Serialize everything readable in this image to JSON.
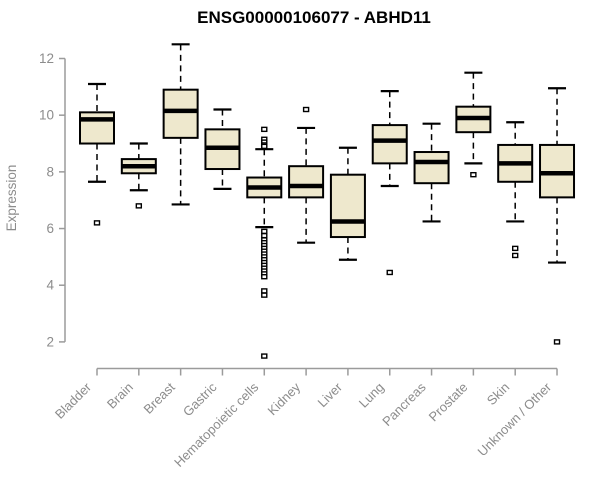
{
  "chart_data": {
    "type": "boxplot",
    "title": "ENSG00000106077 - ABHD11",
    "ylabel": "Expression",
    "xlabel": "",
    "yticks": [
      2,
      4,
      6,
      8,
      10,
      12
    ],
    "ylim": [
      1.3,
      12.7
    ],
    "grid": false,
    "legend": false,
    "categories": [
      "Bladder",
      "Brain",
      "Breast",
      "Gastric",
      "Hematopoietic cells",
      "Kidney",
      "Liver",
      "Lung",
      "Pancreas",
      "Prostate",
      "Skin",
      "Unknown / Other"
    ],
    "series": [
      {
        "category": "Bladder",
        "whisker_low": 7.65,
        "q1": 9.0,
        "median": 9.85,
        "q3": 10.1,
        "whisker_high": 11.1,
        "outliers": [
          6.2
        ]
      },
      {
        "category": "Brain",
        "whisker_low": 7.35,
        "q1": 7.95,
        "median": 8.2,
        "q3": 8.45,
        "whisker_high": 9.0,
        "outliers": [
          6.8
        ]
      },
      {
        "category": "Breast",
        "whisker_low": 6.85,
        "q1": 9.2,
        "median": 10.15,
        "q3": 10.9,
        "whisker_high": 12.5,
        "outliers": []
      },
      {
        "category": "Gastric",
        "whisker_low": 7.4,
        "q1": 8.1,
        "median": 8.85,
        "q3": 9.5,
        "whisker_high": 10.2,
        "outliers": []
      },
      {
        "category": "Hematopoietic cells",
        "whisker_low": 6.05,
        "q1": 7.1,
        "median": 7.45,
        "q3": 7.8,
        "whisker_high": 8.8,
        "outliers": [
          9.5,
          9.15,
          9.05,
          8.95,
          8.9,
          5.9,
          5.75,
          5.6,
          5.5,
          5.4,
          5.3,
          5.2,
          5.1,
          5.0,
          4.9,
          4.8,
          4.7,
          4.6,
          4.5,
          4.4,
          4.3,
          3.8,
          3.65,
          1.5
        ]
      },
      {
        "category": "Kidney",
        "whisker_low": 5.5,
        "q1": 7.1,
        "median": 7.5,
        "q3": 8.2,
        "whisker_high": 9.55,
        "outliers": [
          10.2
        ]
      },
      {
        "category": "Liver",
        "whisker_low": 4.9,
        "q1": 5.7,
        "median": 6.25,
        "q3": 7.9,
        "whisker_high": 8.85,
        "outliers": []
      },
      {
        "category": "Lung",
        "whisker_low": 7.5,
        "q1": 8.3,
        "median": 9.1,
        "q3": 9.65,
        "whisker_high": 10.85,
        "outliers": [
          4.45
        ]
      },
      {
        "category": "Pancreas",
        "whisker_low": 6.25,
        "q1": 7.6,
        "median": 8.35,
        "q3": 8.7,
        "whisker_high": 9.7,
        "outliers": []
      },
      {
        "category": "Prostate",
        "whisker_low": 8.3,
        "q1": 9.4,
        "median": 9.9,
        "q3": 10.3,
        "whisker_high": 11.5,
        "outliers": [
          7.9
        ]
      },
      {
        "category": "Skin",
        "whisker_low": 6.25,
        "q1": 7.65,
        "median": 8.3,
        "q3": 8.95,
        "whisker_high": 9.75,
        "outliers": [
          5.3,
          5.05
        ]
      },
      {
        "category": "Unknown / Other",
        "whisker_low": 4.8,
        "q1": 7.1,
        "median": 7.95,
        "q3": 8.95,
        "whisker_high": 10.95,
        "outliers": [
          2.0
        ]
      }
    ],
    "colors": {
      "box_fill": "#EEE8CD",
      "box_border": "#000000",
      "median": "#000000",
      "axis": "#9B9B9B",
      "tick_label": "#8C8C8C",
      "title": "#000000",
      "background": "#FFFFFF"
    }
  }
}
